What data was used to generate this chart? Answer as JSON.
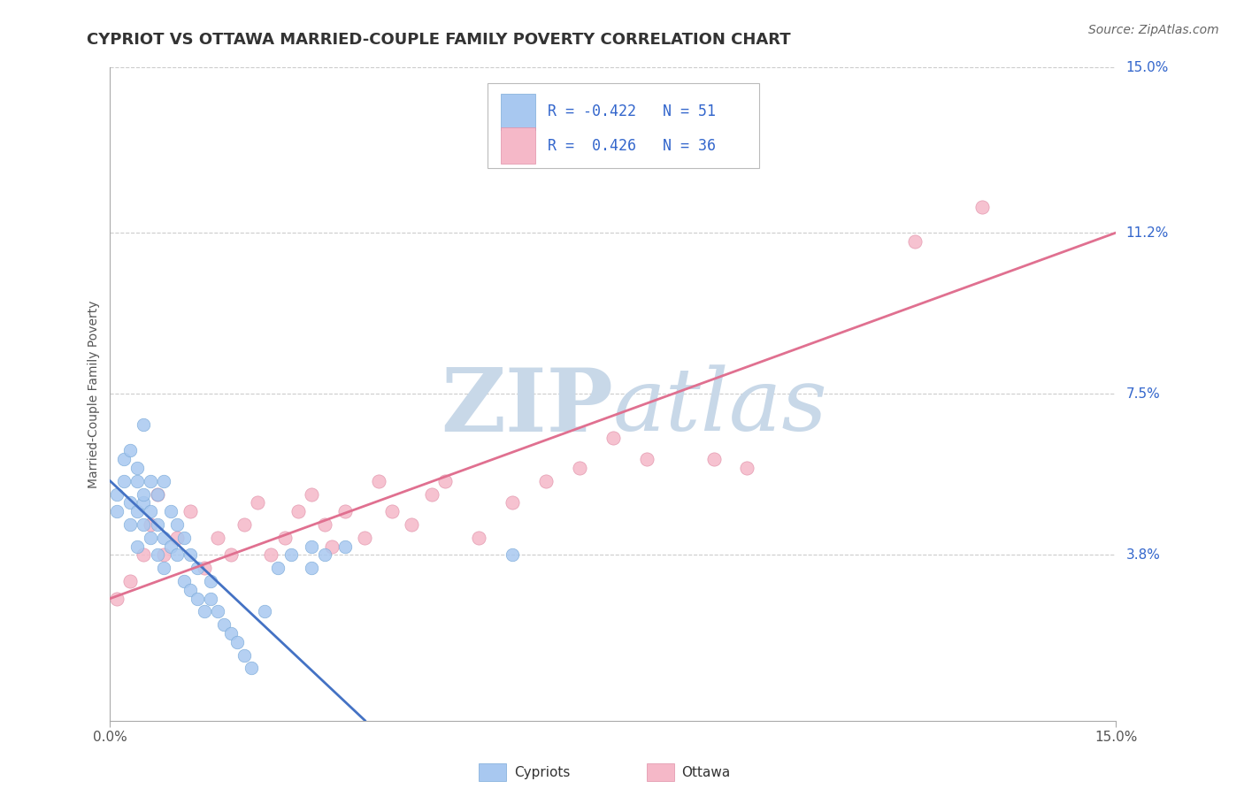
{
  "title": "CYPRIOT VS OTTAWA MARRIED-COUPLE FAMILY POVERTY CORRELATION CHART",
  "source_text": "Source: ZipAtlas.com",
  "ylabel": "Married-Couple Family Poverty",
  "xlim": [
    0,
    0.15
  ],
  "ylim": [
    0,
    0.15
  ],
  "xtick_labels_ends": [
    "0.0%",
    "15.0%"
  ],
  "xtick_vals_ends": [
    0,
    0.15
  ],
  "ytick_labels_right": [
    "15.0%",
    "11.2%",
    "7.5%",
    "3.8%"
  ],
  "ytick_vals_right": [
    0.15,
    0.112,
    0.075,
    0.038
  ],
  "grid_color": "#cccccc",
  "background_color": "#ffffff",
  "watermark_zip": "ZIP",
  "watermark_atlas": "atlas",
  "watermark_color": "#c8d8e8",
  "legend_R1": "-0.422",
  "legend_N1": "51",
  "legend_R2": "0.426",
  "legend_N2": "36",
  "cypriot_color": "#a8c8f0",
  "cypriot_edge_color": "#7aaad8",
  "cypriot_line_color": "#4472c4",
  "ottawa_color": "#f5b8c8",
  "ottawa_edge_color": "#e090a8",
  "ottawa_line_color": "#e07090",
  "cypriot_points_x": [
    0.001,
    0.001,
    0.002,
    0.002,
    0.003,
    0.003,
    0.003,
    0.004,
    0.004,
    0.004,
    0.004,
    0.005,
    0.005,
    0.005,
    0.005,
    0.006,
    0.006,
    0.006,
    0.007,
    0.007,
    0.007,
    0.008,
    0.008,
    0.008,
    0.009,
    0.009,
    0.01,
    0.01,
    0.011,
    0.011,
    0.012,
    0.012,
    0.013,
    0.013,
    0.014,
    0.015,
    0.015,
    0.016,
    0.017,
    0.018,
    0.019,
    0.02,
    0.021,
    0.023,
    0.025,
    0.027,
    0.03,
    0.03,
    0.032,
    0.035,
    0.06
  ],
  "cypriot_points_y": [
    0.048,
    0.052,
    0.055,
    0.06,
    0.045,
    0.05,
    0.062,
    0.04,
    0.055,
    0.048,
    0.058,
    0.05,
    0.045,
    0.052,
    0.068,
    0.042,
    0.055,
    0.048,
    0.038,
    0.045,
    0.052,
    0.035,
    0.042,
    0.055,
    0.04,
    0.048,
    0.038,
    0.045,
    0.032,
    0.042,
    0.03,
    0.038,
    0.028,
    0.035,
    0.025,
    0.032,
    0.028,
    0.025,
    0.022,
    0.02,
    0.018,
    0.015,
    0.012,
    0.025,
    0.035,
    0.038,
    0.04,
    0.035,
    0.038,
    0.04,
    0.038
  ],
  "ottawa_points_x": [
    0.001,
    0.003,
    0.005,
    0.006,
    0.007,
    0.008,
    0.01,
    0.012,
    0.014,
    0.016,
    0.018,
    0.02,
    0.022,
    0.024,
    0.026,
    0.028,
    0.03,
    0.032,
    0.033,
    0.035,
    0.038,
    0.04,
    0.042,
    0.045,
    0.048,
    0.05,
    0.055,
    0.06,
    0.065,
    0.07,
    0.075,
    0.08,
    0.09,
    0.095,
    0.12,
    0.13
  ],
  "ottawa_points_y": [
    0.028,
    0.032,
    0.038,
    0.045,
    0.052,
    0.038,
    0.042,
    0.048,
    0.035,
    0.042,
    0.038,
    0.045,
    0.05,
    0.038,
    0.042,
    0.048,
    0.052,
    0.045,
    0.04,
    0.048,
    0.042,
    0.055,
    0.048,
    0.045,
    0.052,
    0.055,
    0.042,
    0.05,
    0.055,
    0.058,
    0.065,
    0.06,
    0.06,
    0.058,
    0.11,
    0.118
  ],
  "cypriot_trend_x": [
    0.0,
    0.038
  ],
  "cypriot_trend_y": [
    0.055,
    0.0
  ],
  "ottawa_trend_x": [
    0.0,
    0.15
  ],
  "ottawa_trend_y": [
    0.028,
    0.112
  ],
  "title_fontsize": 13,
  "axis_label_fontsize": 10,
  "tick_fontsize": 11,
  "legend_fontsize": 12,
  "source_fontsize": 10
}
